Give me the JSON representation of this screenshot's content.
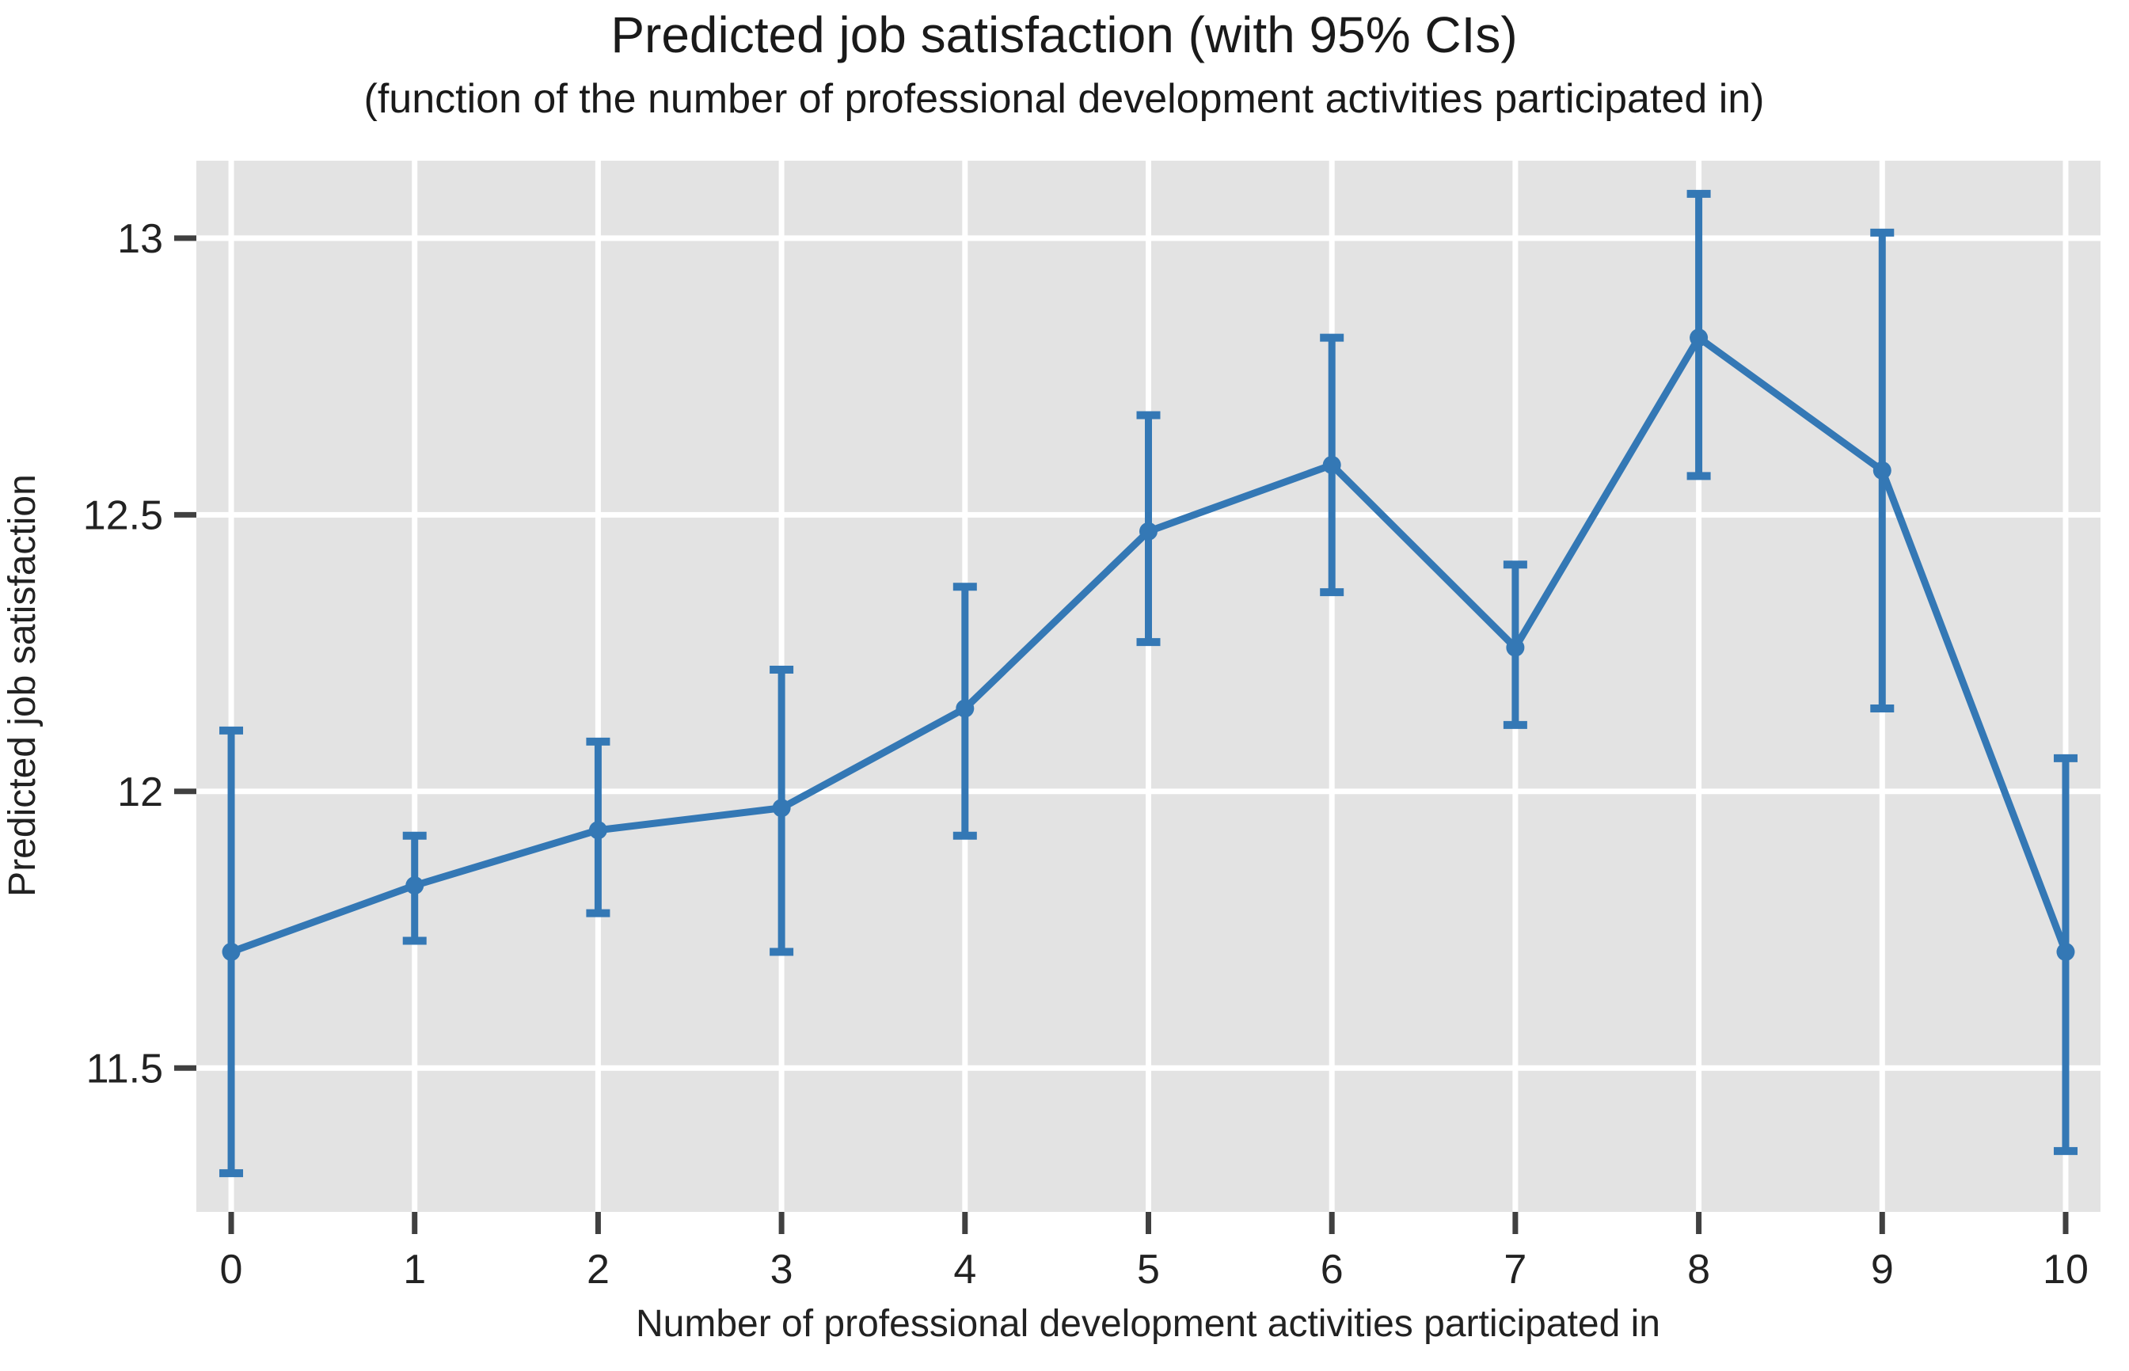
{
  "chart_data": {
    "type": "line",
    "title": "Predicted job satisfaction (with 95% CIs)",
    "subtitle": "(function of the number of professional development activities participated in)",
    "xlabel": "Number of professional development activities participated in",
    "ylabel": "Predicted job satisfaction",
    "x": [
      0,
      1,
      2,
      3,
      4,
      5,
      6,
      7,
      8,
      9,
      10
    ],
    "x_tick_labels": [
      "0",
      "1",
      "2",
      "3",
      "4",
      "5",
      "6",
      "7",
      "8",
      "9",
      "10"
    ],
    "y_ticks": [
      11.5,
      12,
      12.5,
      13
    ],
    "y_tick_labels": [
      "11.5",
      "12",
      "12.5",
      "13"
    ],
    "xlim": [
      -0.19,
      10.19
    ],
    "ylim": [
      11.24,
      13.14
    ],
    "grid": true,
    "legend_position": "none",
    "series": [
      {
        "name": "Predicted job satisfaction",
        "values": [
          11.71,
          11.83,
          11.93,
          11.97,
          12.15,
          12.47,
          12.59,
          12.26,
          12.82,
          12.58,
          11.71
        ],
        "ci_lower": [
          11.31,
          11.73,
          11.78,
          11.71,
          11.92,
          12.27,
          12.36,
          12.12,
          12.57,
          12.15,
          11.35
        ],
        "ci_upper": [
          12.11,
          11.92,
          12.09,
          12.22,
          12.37,
          12.68,
          12.82,
          12.41,
          13.08,
          13.01,
          12.06
        ]
      }
    ],
    "colors": {
      "line": "#3478b5",
      "panel_background": "#e3e3e3",
      "gridline": "#ffffff",
      "tick_mark": "#404040",
      "tick_label": "#222222",
      "title_text": "#1a1a1a"
    }
  }
}
